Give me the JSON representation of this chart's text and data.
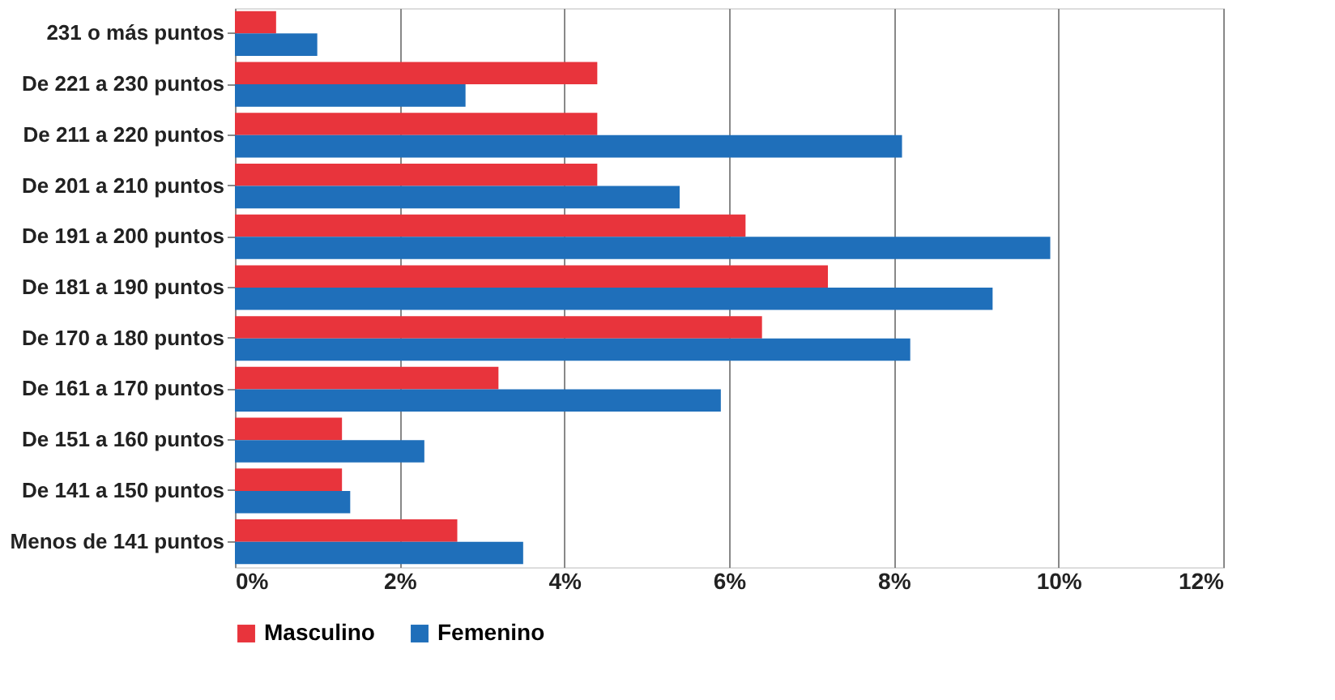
{
  "chart_data": {
    "type": "bar",
    "orientation": "horizontal",
    "categories": [
      "231 o más puntos",
      "De 221 a 230 puntos",
      "De 211 a 220 puntos",
      "De 201 a 210 puntos",
      "De 191 a 200 puntos",
      "De 181 a 190 puntos",
      "De 170 a 180 puntos",
      "De 161 a 170 puntos",
      "De 151 a 160 puntos",
      "De 141 a 150 puntos",
      "Menos de 141 puntos"
    ],
    "series": [
      {
        "name": "Masculino",
        "color": "#e8343c",
        "values": [
          0.5,
          4.4,
          4.4,
          4.4,
          6.2,
          7.2,
          6.4,
          3.2,
          1.3,
          1.3,
          2.7
        ]
      },
      {
        "name": "Femenino",
        "color": "#1f6fba",
        "values": [
          1.0,
          2.8,
          8.1,
          5.4,
          9.9,
          9.2,
          8.2,
          5.9,
          2.3,
          1.4,
          3.5
        ]
      }
    ],
    "xlim": [
      0,
      12
    ],
    "xticks": [
      {
        "value": 0,
        "label": "0%"
      },
      {
        "value": 2,
        "label": "2%"
      },
      {
        "value": 4,
        "label": "4%"
      },
      {
        "value": 6,
        "label": "6%"
      },
      {
        "value": 8,
        "label": "8%"
      },
      {
        "value": 10,
        "label": "10%"
      },
      {
        "value": 12,
        "label": "12%"
      }
    ],
    "grid": "x",
    "legend": "bottom"
  }
}
